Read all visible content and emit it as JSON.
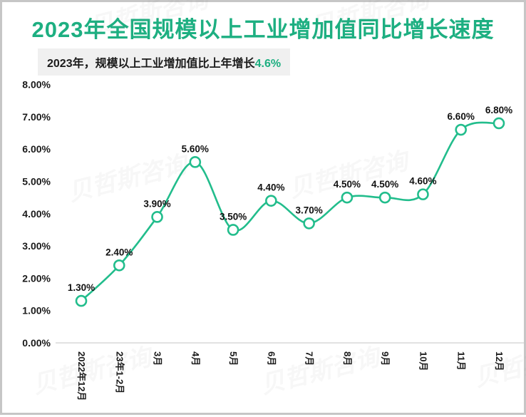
{
  "page": {
    "title": "2023年全国规模以上工业增加值同比增长速度",
    "subtitle_prefix": "2023年，规模以上工业增加值比上年增长",
    "subtitle_highlight": "4.6%",
    "watermark_text": "贝哲斯咨询"
  },
  "colors": {
    "accent_green": "#1daf81",
    "line_green": "#22bd8c",
    "marker_fill": "#ffffff",
    "axis_line": "#d9d9d9",
    "label_text": "#1a1a1a",
    "subtitle_bg": "#f0f0f0",
    "page_border": "#c6c6c6"
  },
  "chart_data": {
    "type": "line",
    "title": "2023年全国规模以上工业增加值同比增长速度",
    "categories": [
      "2022年12月",
      "23年1-2月",
      "3月",
      "4月",
      "5月",
      "6月",
      "7月",
      "8月",
      "9月",
      "10月",
      "11月",
      "12月"
    ],
    "values": [
      1.3,
      2.4,
      3.9,
      5.6,
      3.5,
      4.4,
      3.7,
      4.5,
      4.5,
      4.6,
      6.6,
      6.8
    ],
    "value_labels": [
      "1.30%",
      "2.40%",
      "3.90%",
      "5.60%",
      "3.50%",
      "4.40%",
      "3.70%",
      "4.50%",
      "4.50%",
      "4.60%",
      "6.60%",
      "6.80%"
    ],
    "y_ticks": [
      "0.00%",
      "1.00%",
      "2.00%",
      "3.00%",
      "4.00%",
      "5.00%",
      "6.00%",
      "7.00%",
      "8.00%"
    ],
    "ylim": [
      0,
      8
    ],
    "unit": "%",
    "xlabel": "",
    "ylabel": "",
    "grid": false,
    "legend": "none",
    "smooth": true,
    "marker": "open-circle"
  }
}
